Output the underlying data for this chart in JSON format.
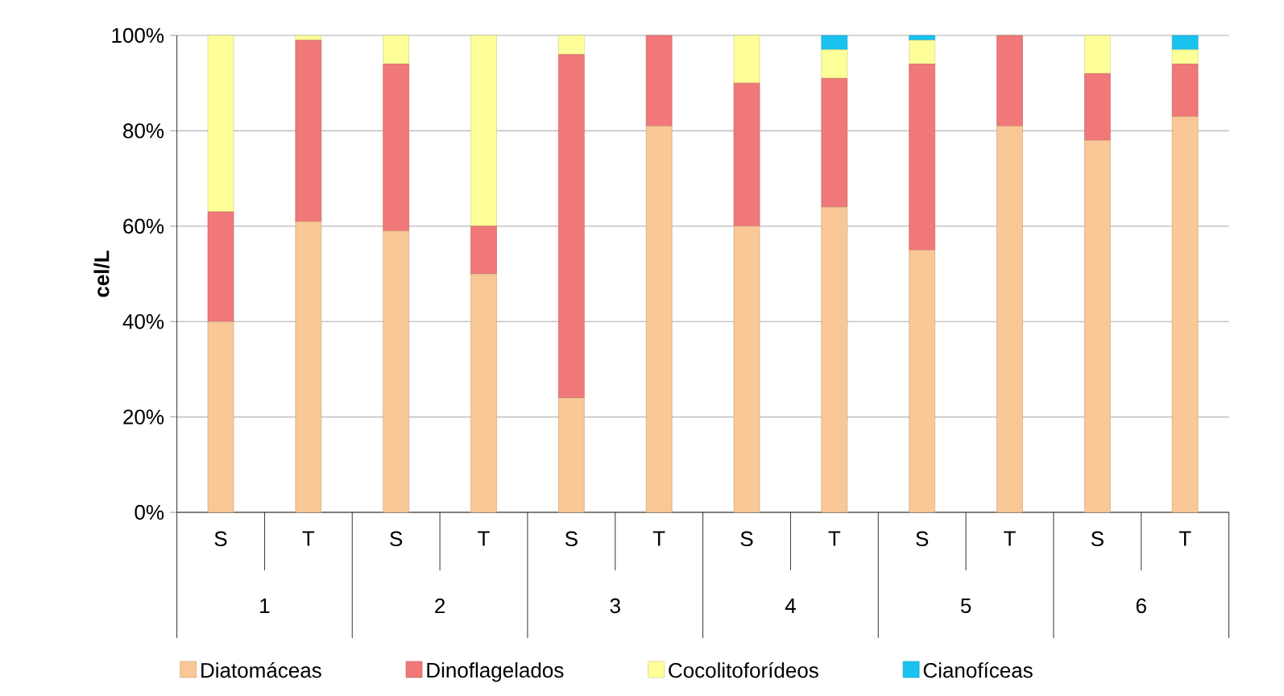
{
  "chart_data": {
    "type": "bar",
    "stacked": true,
    "ylabel": "cel/L",
    "categories": [
      "S",
      "T",
      "S",
      "T",
      "S",
      "T",
      "S",
      "T",
      "S",
      "T",
      "S",
      "T"
    ],
    "annotations": [
      "1",
      "2",
      "3",
      "4",
      "5",
      "6"
    ],
    "series": [
      {
        "name": "Diatomáceas",
        "color": "#f9c896",
        "values": [
          40,
          61,
          59,
          50,
          24,
          81,
          60,
          64,
          55,
          81,
          78,
          83
        ]
      },
      {
        "name": "Dinoflagelados",
        "color": "#f07878",
        "values": [
          23,
          38,
          35,
          10,
          72,
          19,
          30,
          27,
          39,
          19,
          14,
          11
        ]
      },
      {
        "name": "Cocolitoforídeos",
        "color": "#ffff99",
        "values": [
          37,
          1,
          6,
          40,
          4,
          0,
          10,
          6,
          5,
          0,
          8,
          3
        ]
      },
      {
        "name": "Cianofíceas",
        "color": "#19c2ef",
        "values": [
          0,
          0,
          0,
          0,
          0,
          0,
          0,
          3,
          1,
          0,
          0,
          3
        ]
      }
    ],
    "ylim": [
      0,
      100
    ],
    "yticks": [
      {
        "value": 0,
        "label": "0%"
      },
      {
        "value": 20,
        "label": "20%"
      },
      {
        "value": 40,
        "label": "40%"
      },
      {
        "value": 60,
        "label": "60%"
      },
      {
        "value": 80,
        "label": "80%"
      },
      {
        "value": 100,
        "label": "100%"
      }
    ],
    "grid": "y",
    "legend": "bottom"
  }
}
